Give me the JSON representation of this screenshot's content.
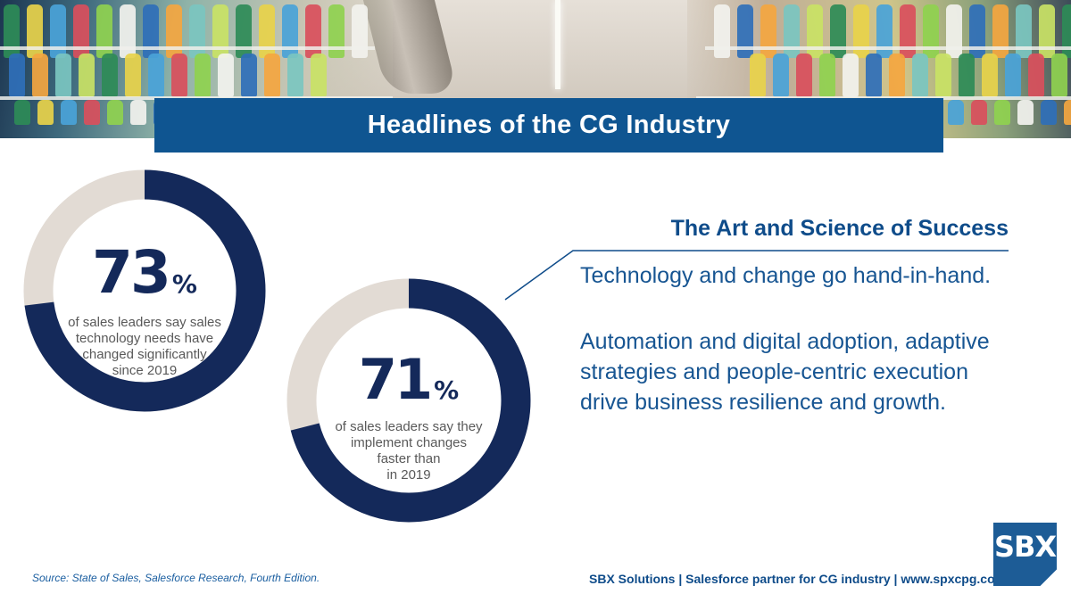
{
  "header": {
    "title": "Headlines of the CG Industry"
  },
  "stats": [
    {
      "number": "73",
      "unit": "%",
      "fraction": 0.73,
      "caption_lines": [
        "of sales leaders say sales",
        "technology needs have",
        "changed significantly",
        "since 2019"
      ]
    },
    {
      "number": "71",
      "unit": "%",
      "fraction": 0.71,
      "caption_lines": [
        "of sales leaders say they",
        "implement changes",
        "faster than",
        "in 2019"
      ]
    }
  ],
  "callout": {
    "heading": "The Art and Science of Success",
    "line1": "Technology and change go hand-in-hand.",
    "paragraph2_lines": [
      "Automation and digital adoption, adaptive",
      "strategies and people-centric execution",
      "drive business resilience and growth."
    ]
  },
  "footer": {
    "source": "Source: State of Sales, Salesforce Research, Fourth Edition.",
    "info": "SBX Solutions | Salesforce partner for CG industry | www.spxcpg.com",
    "logo_text": "SBX"
  },
  "colors": {
    "brand_blue": "#0f5591",
    "ring_fill": "#14295a",
    "ring_track": "#e2dbd4",
    "text_blue": "#175592"
  }
}
